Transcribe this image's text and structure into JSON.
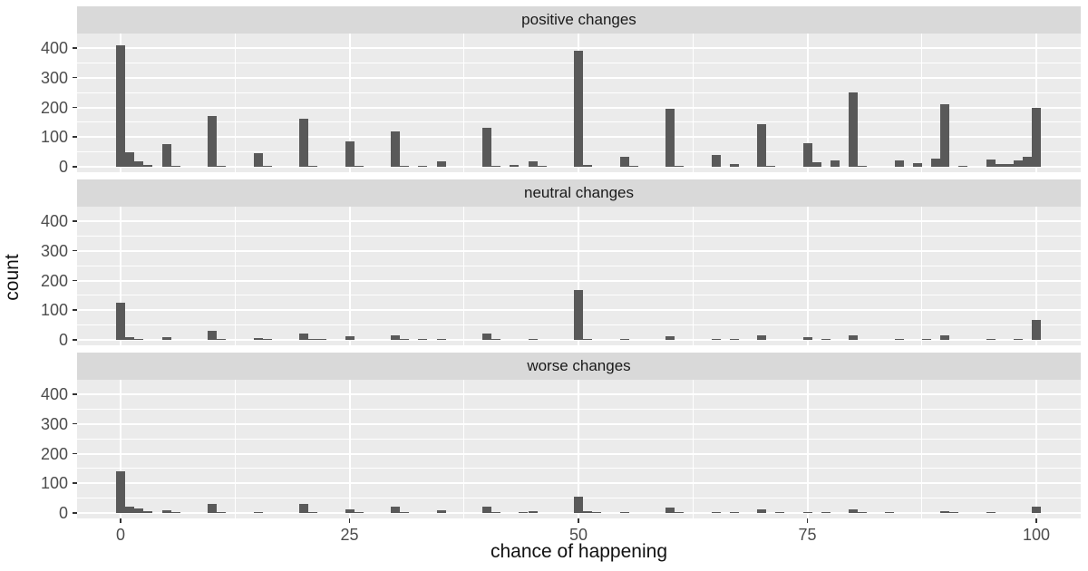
{
  "chart_data": {
    "type": "bar",
    "subtype": "faceted-histogram",
    "title": "",
    "xlabel": "chance of happening",
    "ylabel": "count",
    "x_ticks": [
      0,
      25,
      50,
      75,
      100
    ],
    "x_tick_labels": [
      "0",
      "25",
      "50",
      "75",
      "100"
    ],
    "y_ticks": [
      0,
      100,
      200,
      300,
      400
    ],
    "y_tick_labels": [
      "0",
      "100",
      "200",
      "300",
      "400"
    ],
    "y_minor_ticks": [
      50,
      150,
      250,
      350
    ],
    "x_minor_ticks": [
      12.5,
      37.5,
      62.5,
      87.5
    ],
    "xlim": [
      -5,
      105
    ],
    "ylim": [
      0,
      450
    ],
    "grid": true,
    "legend": "none",
    "colors": {
      "bar": "#595959",
      "panel_background": "#EBEBEB",
      "strip_background": "#D9D9D9",
      "gridline": "#FFFFFF",
      "axis_text": "#4D4D4D",
      "title_text": "#111111"
    },
    "facets": [
      {
        "label": "positive changes",
        "bins": [
          [
            0,
            410
          ],
          [
            1,
            50
          ],
          [
            2,
            18
          ],
          [
            3,
            6
          ],
          [
            5,
            75
          ],
          [
            6,
            3
          ],
          [
            10,
            170
          ],
          [
            11,
            4
          ],
          [
            15,
            47
          ],
          [
            16,
            3
          ],
          [
            20,
            163
          ],
          [
            21,
            4
          ],
          [
            25,
            85
          ],
          [
            26,
            3
          ],
          [
            30,
            120
          ],
          [
            31,
            3
          ],
          [
            33,
            4
          ],
          [
            35,
            17
          ],
          [
            40,
            130
          ],
          [
            41,
            3
          ],
          [
            43,
            7
          ],
          [
            45,
            17
          ],
          [
            46,
            3
          ],
          [
            50,
            390
          ],
          [
            51,
            5
          ],
          [
            55,
            35
          ],
          [
            56,
            3
          ],
          [
            60,
            195
          ],
          [
            61,
            3
          ],
          [
            65,
            40
          ],
          [
            67,
            10
          ],
          [
            70,
            145
          ],
          [
            71,
            3
          ],
          [
            75,
            80
          ],
          [
            76,
            15
          ],
          [
            78,
            20
          ],
          [
            80,
            250
          ],
          [
            81,
            3
          ],
          [
            85,
            22
          ],
          [
            87,
            12
          ],
          [
            89,
            28
          ],
          [
            90,
            210
          ],
          [
            92,
            3
          ],
          [
            95,
            25
          ],
          [
            96,
            10
          ],
          [
            97,
            8
          ],
          [
            98,
            20
          ],
          [
            99,
            35
          ],
          [
            100,
            198
          ]
        ]
      },
      {
        "label": "neutral changes",
        "bins": [
          [
            0,
            125
          ],
          [
            1,
            8
          ],
          [
            2,
            3
          ],
          [
            5,
            8
          ],
          [
            10,
            30
          ],
          [
            11,
            3
          ],
          [
            15,
            5
          ],
          [
            16,
            3
          ],
          [
            20,
            20
          ],
          [
            21,
            3
          ],
          [
            22,
            4
          ],
          [
            25,
            12
          ],
          [
            30,
            15
          ],
          [
            31,
            2
          ],
          [
            33,
            2
          ],
          [
            35,
            2
          ],
          [
            40,
            22
          ],
          [
            41,
            2
          ],
          [
            45,
            3
          ],
          [
            50,
            168
          ],
          [
            51,
            4
          ],
          [
            55,
            3
          ],
          [
            60,
            12
          ],
          [
            65,
            4
          ],
          [
            67,
            3
          ],
          [
            70,
            14
          ],
          [
            75,
            10
          ],
          [
            77,
            2
          ],
          [
            80,
            16
          ],
          [
            85,
            3
          ],
          [
            88,
            3
          ],
          [
            90,
            14
          ],
          [
            95,
            4
          ],
          [
            98,
            2
          ],
          [
            100,
            68
          ]
        ]
      },
      {
        "label": "worse changes",
        "bins": [
          [
            0,
            140
          ],
          [
            1,
            20
          ],
          [
            2,
            14
          ],
          [
            3,
            5
          ],
          [
            5,
            10
          ],
          [
            6,
            3
          ],
          [
            10,
            30
          ],
          [
            11,
            2
          ],
          [
            15,
            3
          ],
          [
            20,
            32
          ],
          [
            21,
            2
          ],
          [
            25,
            12
          ],
          [
            26,
            2
          ],
          [
            30,
            20
          ],
          [
            31,
            3
          ],
          [
            35,
            8
          ],
          [
            40,
            20
          ],
          [
            41,
            3
          ],
          [
            44,
            3
          ],
          [
            45,
            6
          ],
          [
            50,
            55
          ],
          [
            51,
            5
          ],
          [
            52,
            3
          ],
          [
            55,
            4
          ],
          [
            60,
            18
          ],
          [
            61,
            2
          ],
          [
            65,
            4
          ],
          [
            67,
            2
          ],
          [
            70,
            12
          ],
          [
            72,
            3
          ],
          [
            75,
            3
          ],
          [
            77,
            2
          ],
          [
            80,
            12
          ],
          [
            81,
            2
          ],
          [
            84,
            3
          ],
          [
            90,
            5
          ],
          [
            91,
            2
          ],
          [
            95,
            3
          ],
          [
            100,
            22
          ]
        ]
      }
    ]
  }
}
